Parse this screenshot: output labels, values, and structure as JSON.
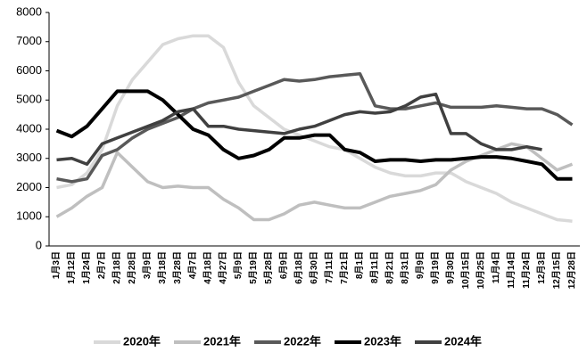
{
  "chart_data": {
    "type": "line",
    "categories": [
      "1月3日",
      "1月12日",
      "1月24日",
      "2月7日",
      "2月18日",
      "2月28日",
      "3月9日",
      "3月18日",
      "3月28日",
      "4月7日",
      "4月18日",
      "4月27日",
      "5月9日",
      "5月19日",
      "5月28日",
      "6月9日",
      "6月18日",
      "6月30日",
      "7月11日",
      "7月21日",
      "8月1日",
      "8月11日",
      "8月21日",
      "8月31日",
      "9月9日",
      "9月19日",
      "9月30日",
      "10月15日",
      "10月25日",
      "11月4日",
      "11月14日",
      "11月24日",
      "12月3日",
      "12月15日",
      "12月28日"
    ],
    "series": [
      {
        "name": "2020年",
        "color": "#d9d9d9",
        "values": [
          2000,
          2100,
          2500,
          3300,
          4800,
          5700,
          6300,
          6900,
          7100,
          7200,
          7200,
          6800,
          5600,
          4800,
          4400,
          4000,
          3800,
          3600,
          3400,
          3300,
          3000,
          2700,
          2500,
          2400,
          2400,
          2500,
          2500,
          2200,
          2000,
          1800,
          1500,
          1300,
          1100,
          900,
          850
        ]
      },
      {
        "name": "2021年",
        "color": "#bfbfbf",
        "values": [
          1000,
          1300,
          1700,
          2000,
          3200,
          2700,
          2200,
          2000,
          2050,
          2000,
          2000,
          1600,
          1300,
          900,
          900,
          1100,
          1400,
          1500,
          1400,
          1300,
          1300,
          1500,
          1700,
          1800,
          1900,
          2100,
          2600,
          2900,
          3100,
          3300,
          3500,
          3400,
          3000,
          2600,
          2800
        ]
      },
      {
        "name": "2022年",
        "color": "#595959",
        "values": [
          2300,
          2200,
          2300,
          3100,
          3300,
          3700,
          4000,
          4200,
          4400,
          4700,
          4900,
          5000,
          5100,
          5300,
          5500,
          5700,
          5650,
          5700,
          5800,
          5850,
          5900,
          4800,
          4700,
          4700,
          4800,
          4900,
          4750,
          4750,
          4750,
          4800,
          4750,
          4700,
          4700,
          4500,
          4150
        ]
      },
      {
        "name": "2023年",
        "color": "#000000",
        "values": [
          3950,
          3750,
          4100,
          4700,
          5300,
          5300,
          5300,
          5000,
          4500,
          4000,
          3800,
          3300,
          3000,
          3100,
          3300,
          3700,
          3700,
          3800,
          3800,
          3300,
          3200,
          2900,
          2950,
          2950,
          2900,
          2950,
          2950,
          3000,
          3050,
          3050,
          3000,
          2900,
          2800,
          2300,
          2300
        ]
      },
      {
        "name": "2024年",
        "color": "#404040",
        "values": [
          2950,
          3000,
          2800,
          3500,
          3700,
          3900,
          4100,
          4300,
          4600,
          4700,
          4100,
          4100,
          4000,
          3950,
          3900,
          3850,
          4000,
          4100,
          4300,
          4500,
          4600,
          4550,
          4600,
          4800,
          5100,
          5200,
          3850,
          3850,
          3500,
          3300,
          3300,
          3400,
          3300,
          null,
          null
        ]
      }
    ],
    "ylim": [
      0,
      8000
    ],
    "yticks": [
      0,
      1000,
      2000,
      3000,
      4000,
      5000,
      6000,
      7000,
      8000
    ],
    "grid": false,
    "legend": "bottom"
  }
}
